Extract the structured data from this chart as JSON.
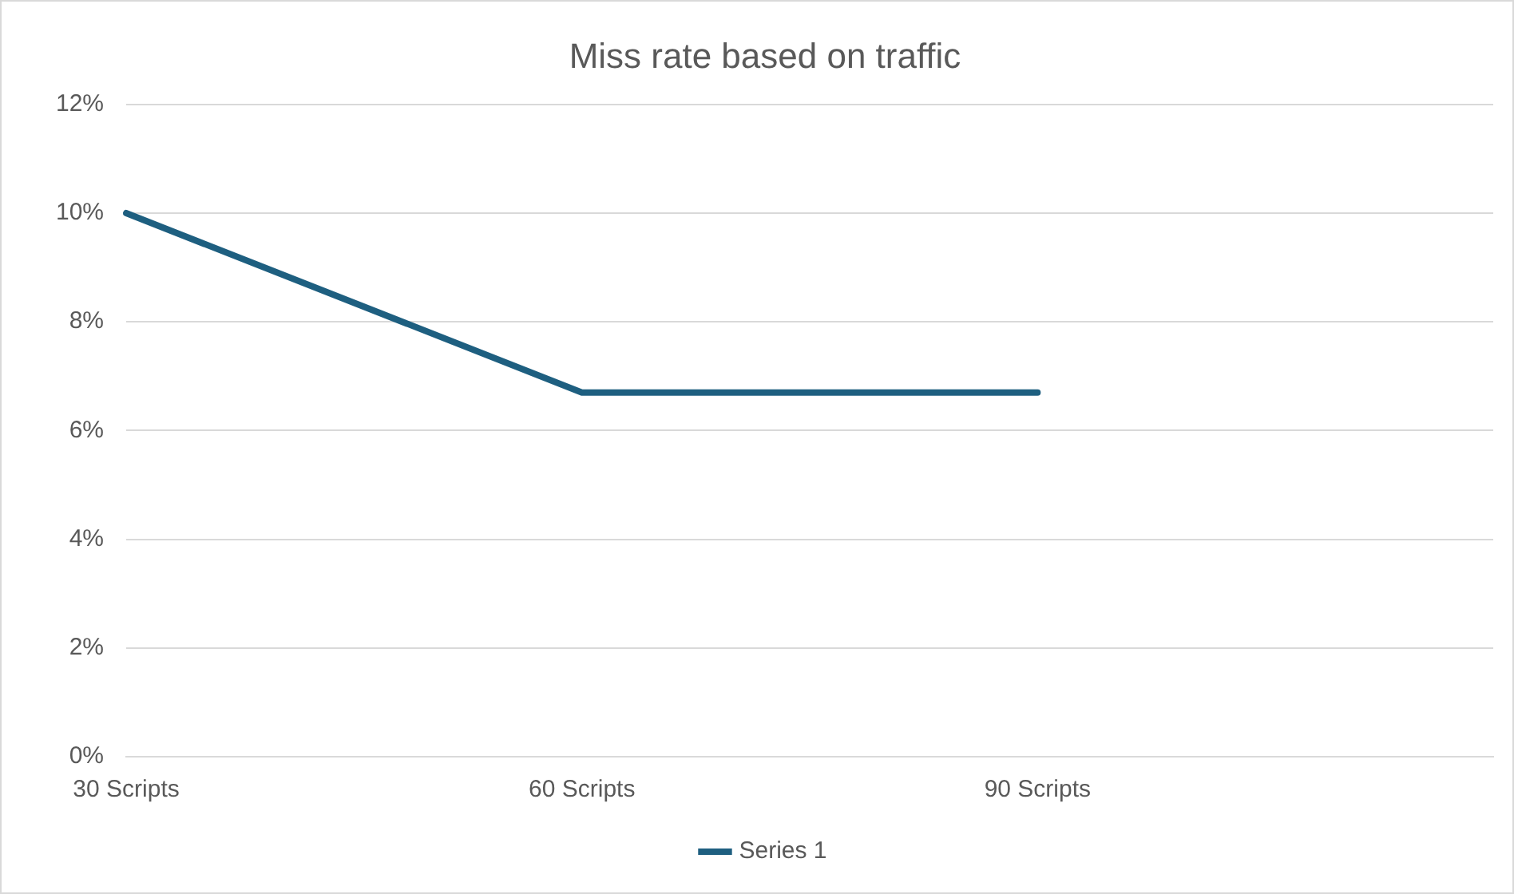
{
  "chart_data": {
    "type": "line",
    "title": "Miss rate based on traffic",
    "categories": [
      "30 Scripts",
      "60 Scripts",
      "90 Scripts",
      null
    ],
    "series": [
      {
        "name": "Series 1",
        "color": "#1e5f80",
        "values": [
          10,
          6.7,
          6.7,
          null
        ]
      }
    ],
    "ylim": [
      0,
      12
    ],
    "yticks": [
      {
        "value": 0,
        "label": "0%"
      },
      {
        "value": 2,
        "label": "2%"
      },
      {
        "value": 4,
        "label": "4%"
      },
      {
        "value": 6,
        "label": "6%"
      },
      {
        "value": 8,
        "label": "8%"
      },
      {
        "value": 10,
        "label": "10%"
      },
      {
        "value": 12,
        "label": "12%"
      }
    ],
    "grid": "y",
    "legend": "bottom",
    "marker": "none"
  }
}
